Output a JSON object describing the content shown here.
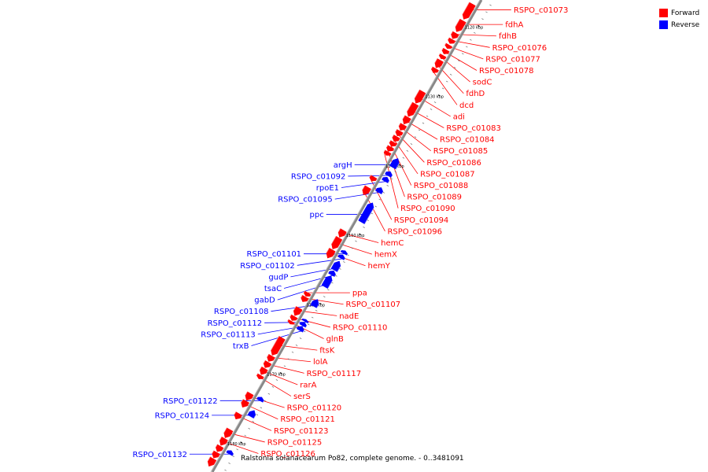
{
  "title": "Ralstonia solanacearum Po82, complete genome. - 0..3481091",
  "colors": {
    "forward": "#ff0000",
    "reverse": "#0000ff",
    "backbone": "#888888"
  },
  "legend": [
    {
      "label": "Forward",
      "color": "#ff0000"
    },
    {
      "label": "Reverse",
      "color": "#0000ff"
    }
  ],
  "ticks": [
    {
      "label": "1120 kbp",
      "kbp": 1120
    },
    {
      "label": "1130 kbp",
      "kbp": 1130
    },
    {
      "label": "1140 kbp",
      "kbp": 1140
    },
    {
      "label": "1150 kbp",
      "kbp": 1150
    },
    {
      "label": "1160 kbp",
      "kbp": 1160
    },
    {
      "label": "1170 kbp",
      "kbp": 1170
    },
    {
      "label": "1180 kbp",
      "kbp": 1180
    }
  ],
  "forward_genes": [
    {
      "name": "RSPO_c01073",
      "start_kbp": 1118.0,
      "end_kbp": 1120.2
    },
    {
      "name": "fdhA",
      "start_kbp": 1120.4,
      "end_kbp": 1122.0
    },
    {
      "name": "fdhB",
      "start_kbp": 1122.2,
      "end_kbp": 1123.0
    },
    {
      "name": "RSPO_c01076",
      "start_kbp": 1123.1,
      "end_kbp": 1123.7
    },
    {
      "name": "RSPO_c01077",
      "start_kbp": 1123.9,
      "end_kbp": 1124.4
    },
    {
      "name": "RSPO_c01078",
      "start_kbp": 1124.6,
      "end_kbp": 1125.2
    },
    {
      "name": "sodC",
      "start_kbp": 1125.4,
      "end_kbp": 1125.9
    },
    {
      "name": "fdhD",
      "start_kbp": 1126.1,
      "end_kbp": 1127.2
    },
    {
      "name": "dcd",
      "start_kbp": 1127.3,
      "end_kbp": 1127.9
    },
    {
      "name": "adi",
      "start_kbp": 1130.6,
      "end_kbp": 1132.3
    },
    {
      "name": "RSPO_c01083",
      "start_kbp": 1132.4,
      "end_kbp": 1134.2
    },
    {
      "name": "RSPO_c01084",
      "start_kbp": 1134.3,
      "end_kbp": 1135.3
    },
    {
      "name": "RSPO_c01085",
      "start_kbp": 1135.4,
      "end_kbp": 1136.2
    },
    {
      "name": "RSPO_c01086",
      "start_kbp": 1136.3,
      "end_kbp": 1137.0
    },
    {
      "name": "RSPO_c01087",
      "start_kbp": 1137.1,
      "end_kbp": 1137.8
    },
    {
      "name": "RSPO_c01088",
      "start_kbp": 1137.9,
      "end_kbp": 1138.5
    },
    {
      "name": "RSPO_c01089",
      "start_kbp": 1138.6,
      "end_kbp": 1139.2
    },
    {
      "name": "RSPO_c01090",
      "start_kbp": 1139.3,
      "end_kbp": 1139.8
    },
    {
      "name": "RSPO_c01094",
      "start_kbp": 1142.9,
      "end_kbp": 1143.5
    },
    {
      "name": "RSPO_c01096",
      "start_kbp": 1144.4,
      "end_kbp": 1145.5
    },
    {
      "name": "hemC",
      "start_kbp": 1150.6,
      "end_kbp": 1151.6
    },
    {
      "name": "hemX",
      "start_kbp": 1151.7,
      "end_kbp": 1153.3
    },
    {
      "name": "hemY",
      "start_kbp": 1153.4,
      "end_kbp": 1154.6
    },
    {
      "name": "ppa",
      "start_kbp": 1159.6,
      "end_kbp": 1160.1
    },
    {
      "name": "RSPO_c01107",
      "start_kbp": 1160.2,
      "end_kbp": 1160.9
    },
    {
      "name": "nadE",
      "start_kbp": 1161.8,
      "end_kbp": 1162.9
    },
    {
      "name": "RSPO_c01110",
      "start_kbp": 1163.0,
      "end_kbp": 1163.6
    },
    {
      "name": "glnB",
      "start_kbp": 1163.7,
      "end_kbp": 1164.1
    },
    {
      "name": "ftsK",
      "start_kbp": 1166.1,
      "end_kbp": 1168.6
    },
    {
      "name": "lolA",
      "start_kbp": 1168.7,
      "end_kbp": 1169.5
    },
    {
      "name": "RSPO_c01117",
      "start_kbp": 1169.6,
      "end_kbp": 1170.4
    },
    {
      "name": "rarA",
      "start_kbp": 1170.5,
      "end_kbp": 1171.4
    },
    {
      "name": "serS",
      "start_kbp": 1171.5,
      "end_kbp": 1172.0
    },
    {
      "name": "RSPO_c01120",
      "start_kbp": 1174.1,
      "end_kbp": 1175.1
    },
    {
      "name": "RSPO_c01121",
      "start_kbp": 1175.2,
      "end_kbp": 1176.1
    },
    {
      "name": "RSPO_c01123",
      "start_kbp": 1177.0,
      "end_kbp": 1177.8
    },
    {
      "name": "RSPO_c01125",
      "start_kbp": 1179.3,
      "end_kbp": 1180.5
    },
    {
      "name": "RSPO_c01126",
      "start_kbp": 1180.6,
      "end_kbp": 1181.6
    },
    {
      "name": "",
      "start_kbp": 1181.7,
      "end_kbp": 1182.5
    },
    {
      "name": "",
      "start_kbp": 1182.6,
      "end_kbp": 1183.4
    },
    {
      "name": "",
      "start_kbp": 1183.5,
      "end_kbp": 1184.6
    }
  ],
  "reverse_genes": [
    {
      "name": "argH",
      "start_kbp": 1139.4,
      "end_kbp": 1140.7
    },
    {
      "name": "RSPO_c01092",
      "start_kbp": 1141.3,
      "end_kbp": 1141.9
    },
    {
      "name": "rpoE1",
      "start_kbp": 1142.1,
      "end_kbp": 1142.7
    },
    {
      "name": "RSPO_c01095",
      "start_kbp": 1143.6,
      "end_kbp": 1144.3
    },
    {
      "name": "ppc",
      "start_kbp": 1145.8,
      "end_kbp": 1148.6
    },
    {
      "name": "RSPO_c01101",
      "start_kbp": 1152.7,
      "end_kbp": 1153.1
    },
    {
      "name": "RSPO_c01102",
      "start_kbp": 1153.3,
      "end_kbp": 1153.8
    },
    {
      "name": "gudP",
      "start_kbp": 1154.2,
      "end_kbp": 1155.5
    },
    {
      "name": "tsaC",
      "start_kbp": 1155.6,
      "end_kbp": 1156.2
    },
    {
      "name": "gabD",
      "start_kbp": 1156.3,
      "end_kbp": 1157.9
    },
    {
      "name": "RSPO_c01108",
      "start_kbp": 1159.7,
      "end_kbp": 1160.7
    },
    {
      "name": "RSPO_c01112",
      "start_kbp": 1162.6,
      "end_kbp": 1162.9
    },
    {
      "name": "RSPO_c01113",
      "start_kbp": 1163.0,
      "end_kbp": 1163.5
    },
    {
      "name": "trxB",
      "start_kbp": 1163.6,
      "end_kbp": 1164.2
    },
    {
      "name": "RSPO_c01122",
      "start_kbp": 1173.8,
      "end_kbp": 1174.3
    },
    {
      "name": "RSPO_c01124",
      "start_kbp": 1175.7,
      "end_kbp": 1176.6
    },
    {
      "name": "RSPO_c01132",
      "start_kbp": 1181.5,
      "end_kbp": 1182.0
    }
  ]
}
